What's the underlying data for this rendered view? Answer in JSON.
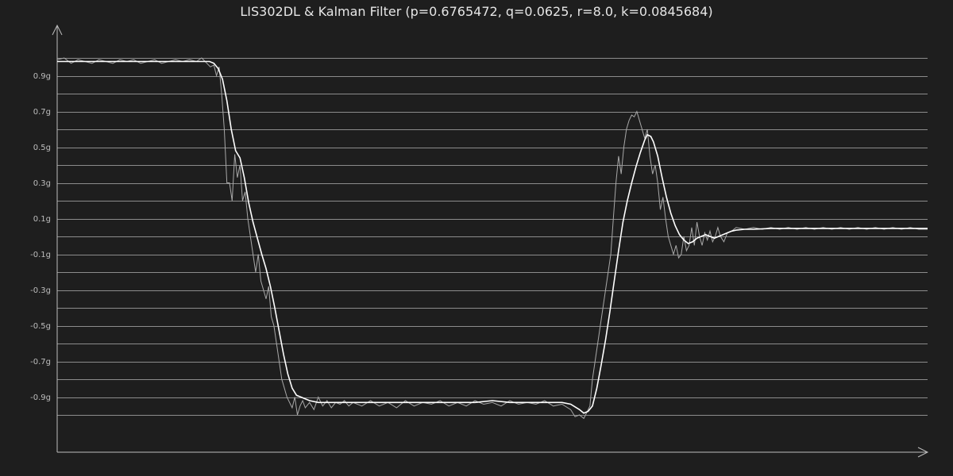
{
  "chart_data": {
    "type": "line",
    "title": "LIS302DL & Kalman Filter (p=0.6765472, q=0.0625, r=8.0, k=0.0845684)",
    "xlabel": "",
    "ylabel": "",
    "y_tick_labels": [
      "0.9g",
      "0.7g",
      "0.5g",
      "0.3g",
      "0.1g",
      "-0.1g",
      "-0.3g",
      "-0.5g",
      "-0.7g",
      "-0.9g"
    ],
    "y_tick_values": [
      0.9,
      0.7,
      0.5,
      0.3,
      0.1,
      -0.1,
      -0.3,
      -0.5,
      -0.7,
      -0.9
    ],
    "gridlines_y": [
      1.0,
      0.9,
      0.8,
      0.7,
      0.6,
      0.5,
      0.4,
      0.3,
      0.2,
      0.1,
      0.0,
      -0.1,
      -0.2,
      -0.3,
      -0.4,
      -0.5,
      -0.6,
      -0.7,
      -0.8,
      -0.9,
      -1.0
    ],
    "ylim": [
      -1.2,
      1.2
    ],
    "xlim": [
      0,
      1000
    ],
    "grid": true,
    "legend": false,
    "series": [
      {
        "key": "raw",
        "color": "#a8a8a8",
        "points": [
          [
            0,
            0.99
          ],
          [
            8,
            1.0
          ],
          [
            16,
            0.97
          ],
          [
            24,
            0.99
          ],
          [
            32,
            0.98
          ],
          [
            40,
            0.97
          ],
          [
            48,
            0.99
          ],
          [
            56,
            0.98
          ],
          [
            64,
            0.97
          ],
          [
            72,
            0.99
          ],
          [
            80,
            0.98
          ],
          [
            88,
            0.99
          ],
          [
            96,
            0.97
          ],
          [
            104,
            0.98
          ],
          [
            112,
            0.99
          ],
          [
            120,
            0.97
          ],
          [
            128,
            0.98
          ],
          [
            136,
            0.99
          ],
          [
            144,
            0.98
          ],
          [
            152,
            0.99
          ],
          [
            160,
            0.98
          ],
          [
            166,
            1.0
          ],
          [
            172,
            0.97
          ],
          [
            176,
            0.95
          ],
          [
            180,
            0.96
          ],
          [
            183,
            0.9
          ],
          [
            186,
            0.95
          ],
          [
            189,
            0.8
          ],
          [
            192,
            0.6
          ],
          [
            195,
            0.3
          ],
          [
            198,
            0.3
          ],
          [
            201,
            0.2
          ],
          [
            204,
            0.46
          ],
          [
            207,
            0.33
          ],
          [
            210,
            0.4
          ],
          [
            213,
            0.2
          ],
          [
            216,
            0.25
          ],
          [
            219,
            0.1
          ],
          [
            222,
            0.0
          ],
          [
            225,
            -0.1
          ],
          [
            228,
            -0.2
          ],
          [
            231,
            -0.1
          ],
          [
            234,
            -0.25
          ],
          [
            237,
            -0.3
          ],
          [
            240,
            -0.35
          ],
          [
            243,
            -0.28
          ],
          [
            246,
            -0.45
          ],
          [
            249,
            -0.5
          ],
          [
            252,
            -0.6
          ],
          [
            255,
            -0.7
          ],
          [
            258,
            -0.8
          ],
          [
            261,
            -0.85
          ],
          [
            264,
            -0.9
          ],
          [
            267,
            -0.93
          ],
          [
            270,
            -0.96
          ],
          [
            273,
            -0.9
          ],
          [
            276,
            -1.0
          ],
          [
            279,
            -0.95
          ],
          [
            282,
            -0.92
          ],
          [
            285,
            -0.96
          ],
          [
            290,
            -0.93
          ],
          [
            295,
            -0.97
          ],
          [
            300,
            -0.9
          ],
          [
            305,
            -0.95
          ],
          [
            310,
            -0.92
          ],
          [
            315,
            -0.96
          ],
          [
            320,
            -0.93
          ],
          [
            325,
            -0.94
          ],
          [
            330,
            -0.92
          ],
          [
            335,
            -0.95
          ],
          [
            340,
            -0.93
          ],
          [
            350,
            -0.95
          ],
          [
            360,
            -0.92
          ],
          [
            370,
            -0.95
          ],
          [
            380,
            -0.93
          ],
          [
            390,
            -0.96
          ],
          [
            400,
            -0.92
          ],
          [
            410,
            -0.95
          ],
          [
            420,
            -0.93
          ],
          [
            430,
            -0.94
          ],
          [
            440,
            -0.92
          ],
          [
            450,
            -0.95
          ],
          [
            460,
            -0.93
          ],
          [
            470,
            -0.95
          ],
          [
            480,
            -0.92
          ],
          [
            490,
            -0.94
          ],
          [
            500,
            -0.93
          ],
          [
            510,
            -0.95
          ],
          [
            520,
            -0.92
          ],
          [
            530,
            -0.94
          ],
          [
            540,
            -0.93
          ],
          [
            550,
            -0.94
          ],
          [
            560,
            -0.92
          ],
          [
            570,
            -0.95
          ],
          [
            580,
            -0.94
          ],
          [
            590,
            -0.97
          ],
          [
            595,
            -1.01
          ],
          [
            600,
            -1.0
          ],
          [
            605,
            -1.02
          ],
          [
            608,
            -0.99
          ],
          [
            612,
            -0.95
          ],
          [
            615,
            -0.8
          ],
          [
            618,
            -0.7
          ],
          [
            621,
            -0.6
          ],
          [
            624,
            -0.5
          ],
          [
            627,
            -0.4
          ],
          [
            630,
            -0.3
          ],
          [
            633,
            -0.2
          ],
          [
            636,
            -0.1
          ],
          [
            639,
            0.1
          ],
          [
            642,
            0.3
          ],
          [
            645,
            0.45
          ],
          [
            648,
            0.35
          ],
          [
            651,
            0.5
          ],
          [
            654,
            0.6
          ],
          [
            657,
            0.65
          ],
          [
            660,
            0.68
          ],
          [
            663,
            0.67
          ],
          [
            666,
            0.7
          ],
          [
            669,
            0.65
          ],
          [
            672,
            0.6
          ],
          [
            675,
            0.55
          ],
          [
            678,
            0.6
          ],
          [
            681,
            0.45
          ],
          [
            684,
            0.35
          ],
          [
            687,
            0.4
          ],
          [
            690,
            0.3
          ],
          [
            693,
            0.15
          ],
          [
            696,
            0.22
          ],
          [
            699,
            0.1
          ],
          [
            702,
            0.0
          ],
          [
            705,
            -0.05
          ],
          [
            708,
            -0.1
          ],
          [
            711,
            -0.05
          ],
          [
            714,
            -0.12
          ],
          [
            717,
            -0.1
          ],
          [
            720,
            0.0
          ],
          [
            723,
            -0.08
          ],
          [
            726,
            -0.05
          ],
          [
            729,
            0.05
          ],
          [
            732,
            -0.05
          ],
          [
            735,
            0.08
          ],
          [
            738,
            0.0
          ],
          [
            741,
            -0.05
          ],
          [
            744,
            0.02
          ],
          [
            747,
            -0.02
          ],
          [
            750,
            0.03
          ],
          [
            753,
            -0.03
          ],
          [
            756,
            0.0
          ],
          [
            759,
            0.05
          ],
          [
            762,
            0.0
          ],
          [
            766,
            -0.03
          ],
          [
            770,
            0.02
          ],
          [
            775,
            0.03
          ],
          [
            780,
            0.05
          ],
          [
            790,
            0.04
          ],
          [
            800,
            0.05
          ],
          [
            810,
            0.04
          ],
          [
            820,
            0.05
          ],
          [
            830,
            0.04
          ],
          [
            840,
            0.05
          ],
          [
            850,
            0.04
          ],
          [
            860,
            0.05
          ],
          [
            870,
            0.04
          ],
          [
            880,
            0.05
          ],
          [
            890,
            0.04
          ],
          [
            900,
            0.05
          ],
          [
            910,
            0.04
          ],
          [
            920,
            0.05
          ],
          [
            930,
            0.04
          ],
          [
            940,
            0.05
          ],
          [
            950,
            0.04
          ],
          [
            960,
            0.05
          ],
          [
            970,
            0.04
          ],
          [
            980,
            0.05
          ],
          [
            990,
            0.04
          ],
          [
            1000,
            0.04
          ]
        ]
      },
      {
        "key": "filtered",
        "color": "#ffffff",
        "points": [
          [
            0,
            0.98
          ],
          [
            20,
            0.98
          ],
          [
            40,
            0.98
          ],
          [
            60,
            0.98
          ],
          [
            80,
            0.98
          ],
          [
            100,
            0.98
          ],
          [
            120,
            0.98
          ],
          [
            140,
            0.98
          ],
          [
            160,
            0.98
          ],
          [
            170,
            0.98
          ],
          [
            175,
            0.98
          ],
          [
            180,
            0.97
          ],
          [
            185,
            0.94
          ],
          [
            190,
            0.88
          ],
          [
            195,
            0.76
          ],
          [
            200,
            0.6
          ],
          [
            205,
            0.48
          ],
          [
            210,
            0.44
          ],
          [
            215,
            0.33
          ],
          [
            220,
            0.19
          ],
          [
            225,
            0.08
          ],
          [
            230,
            -0.01
          ],
          [
            235,
            -0.1
          ],
          [
            240,
            -0.18
          ],
          [
            245,
            -0.28
          ],
          [
            250,
            -0.4
          ],
          [
            255,
            -0.53
          ],
          [
            260,
            -0.66
          ],
          [
            265,
            -0.77
          ],
          [
            270,
            -0.85
          ],
          [
            275,
            -0.89
          ],
          [
            280,
            -0.9
          ],
          [
            290,
            -0.92
          ],
          [
            300,
            -0.93
          ],
          [
            320,
            -0.93
          ],
          [
            340,
            -0.93
          ],
          [
            360,
            -0.93
          ],
          [
            380,
            -0.93
          ],
          [
            400,
            -0.93
          ],
          [
            420,
            -0.93
          ],
          [
            440,
            -0.93
          ],
          [
            460,
            -0.93
          ],
          [
            480,
            -0.93
          ],
          [
            500,
            -0.92
          ],
          [
            520,
            -0.93
          ],
          [
            540,
            -0.93
          ],
          [
            560,
            -0.93
          ],
          [
            580,
            -0.93
          ],
          [
            590,
            -0.94
          ],
          [
            600,
            -0.97
          ],
          [
            605,
            -0.99
          ],
          [
            610,
            -0.98
          ],
          [
            615,
            -0.95
          ],
          [
            620,
            -0.85
          ],
          [
            625,
            -0.72
          ],
          [
            630,
            -0.58
          ],
          [
            635,
            -0.42
          ],
          [
            640,
            -0.25
          ],
          [
            645,
            -0.08
          ],
          [
            650,
            0.08
          ],
          [
            655,
            0.2
          ],
          [
            660,
            0.3
          ],
          [
            665,
            0.39
          ],
          [
            670,
            0.47
          ],
          [
            675,
            0.54
          ],
          [
            678,
            0.57
          ],
          [
            682,
            0.56
          ],
          [
            685,
            0.53
          ],
          [
            690,
            0.45
          ],
          [
            695,
            0.33
          ],
          [
            700,
            0.22
          ],
          [
            705,
            0.13
          ],
          [
            710,
            0.06
          ],
          [
            715,
            0.01
          ],
          [
            720,
            -0.02
          ],
          [
            725,
            -0.04
          ],
          [
            730,
            -0.03
          ],
          [
            735,
            -0.01
          ],
          [
            740,
            0.0
          ],
          [
            745,
            0.01
          ],
          [
            750,
            0.0
          ],
          [
            755,
            -0.01
          ],
          [
            760,
            0.0
          ],
          [
            765,
            0.01
          ],
          [
            770,
            0.02
          ],
          [
            775,
            0.03
          ],
          [
            780,
            0.035
          ],
          [
            790,
            0.04
          ],
          [
            800,
            0.04
          ],
          [
            820,
            0.045
          ],
          [
            840,
            0.045
          ],
          [
            860,
            0.045
          ],
          [
            880,
            0.045
          ],
          [
            900,
            0.045
          ],
          [
            920,
            0.045
          ],
          [
            940,
            0.045
          ],
          [
            960,
            0.045
          ],
          [
            980,
            0.045
          ],
          [
            1000,
            0.045
          ]
        ]
      }
    ]
  }
}
